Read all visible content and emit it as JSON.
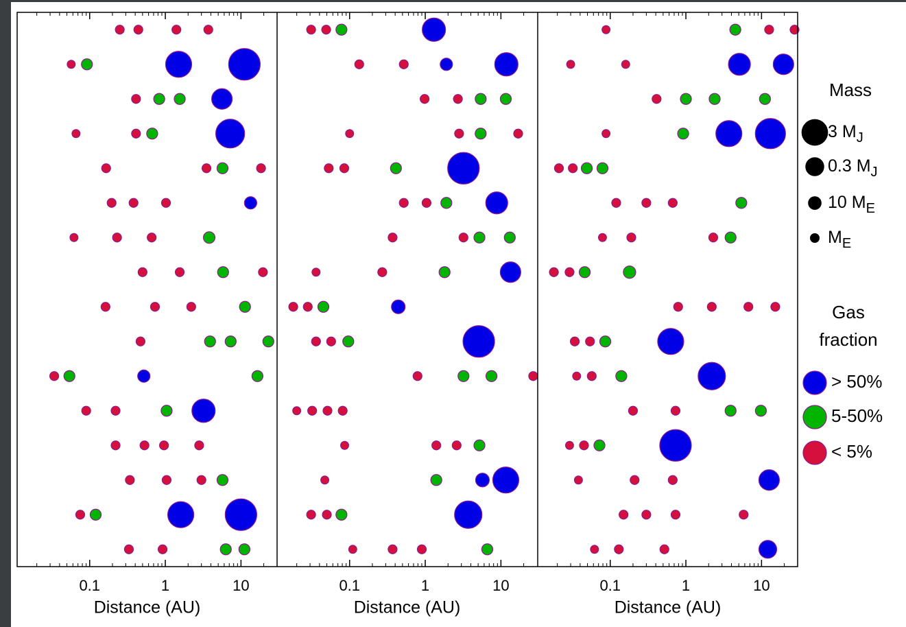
{
  "chart_data": {
    "type": "scatter",
    "x_log": true,
    "y_inverted": true,
    "xlabel": "Distance (AU)",
    "xlim": [
      0.011,
      30
    ],
    "xticks": [
      0.1,
      1,
      10
    ],
    "minor_xticks": [
      0.02,
      0.03,
      0.04,
      0.05,
      0.06,
      0.07,
      0.08,
      0.09,
      0.2,
      0.3,
      0.4,
      0.5,
      0.6,
      0.7,
      0.8,
      0.9,
      2,
      3,
      4,
      5,
      6,
      7,
      8,
      9,
      20
    ],
    "ylim": [
      0.5,
      16.5
    ],
    "edge_color": "#8b1a8b",
    "size_legend": {
      "title": "Mass",
      "items": [
        {
          "label": "3 M",
          "sub": "J",
          "value": 954
        },
        {
          "label": "0.3 M",
          "sub": "J",
          "value": 95.4
        },
        {
          "label": "10 M",
          "sub": "E",
          "value": 10
        },
        {
          "label": "M",
          "sub": "E",
          "value": 1
        }
      ]
    },
    "color_legend": {
      "title": [
        "Gas",
        "fraction"
      ],
      "items": [
        {
          "name": "> 50%",
          "color": "#0000e6"
        },
        {
          "name": "5-50%",
          "color": "#00b400"
        },
        {
          "name": "< 5%",
          "color": "#d6103c"
        }
      ]
    },
    "panels": [
      {
        "series": [
          {
            "x": [
              1.5,
              11.1,
              5.6,
              7.2,
              13.4,
              0.52,
              3.2,
              1.6,
              10
            ],
            "y": [
              2,
              2,
              3,
              4,
              6,
              11,
              12,
              15,
              15
            ],
            "size": [
              850,
              3100,
              170,
              1700,
              5.5,
              5.5,
              400,
              850,
              3100
            ]
          },
          {
            "x": [
              0.092,
              0.83,
              1.55,
              0.67,
              5.7,
              3.8,
              5.8,
              11.3,
              3.9,
              7.3,
              23,
              0.054,
              16.5,
              1.04,
              5.7,
              0.12,
              6.3,
              11.1
            ],
            "y": [
              2,
              3,
              3,
              4,
              5,
              7,
              8,
              9,
              10,
              10,
              10,
              11,
              11,
              12,
              14,
              15,
              16,
              16
            ],
            "size": [
              2.5,
              2.5,
              2.5,
              2.5,
              2.5,
              3.5,
              2.5,
              2.5,
              2.5,
              2.5,
              2.5,
              2.5,
              2.5,
              2.5,
              2.5,
              2.5,
              2.5,
              2.5
            ]
          },
          {
            "x": [
              0.25,
              0.44,
              1.4,
              3.7,
              0.057,
              0.41,
              0.066,
              0.41,
              0.165,
              3.5,
              18.4,
              0.195,
              0.38,
              1.02,
              0.062,
              0.23,
              0.66,
              0.5,
              1.55,
              19.5,
              0.162,
              0.73,
              2.2,
              0.47,
              0.034,
              0.09,
              0.22,
              0.22,
              0.53,
              0.96,
              2.8,
              0.34,
              1.04,
              3.0,
              0.075,
              0.33,
              0.92
            ],
            "y": [
              1,
              1,
              1,
              1,
              2,
              3,
              4,
              4,
              5,
              5,
              5,
              6,
              6,
              6,
              7,
              7,
              7,
              8,
              8,
              8,
              9,
              9,
              9,
              10,
              11,
              12,
              12,
              13,
              13,
              13,
              13,
              14,
              14,
              14,
              15,
              16,
              16
            ],
            "size": [
              0.6,
              0.6,
              0.6,
              0.6,
              0.3,
              0.6,
              0.3,
              0.6,
              0.6,
              0.6,
              0.6,
              0.6,
              0.6,
              0.6,
              0.3,
              0.6,
              0.6,
              0.6,
              0.6,
              0.6,
              0.6,
              0.6,
              0.6,
              0.6,
              0.6,
              0.6,
              0.6,
              0.6,
              0.6,
              0.6,
              0.6,
              0.6,
              0.6,
              0.6,
              0.6,
              0.6,
              0.6
            ]
          }
        ]
      },
      {
        "series": [
          {
            "x": [
              1.3,
              1.9,
              11.8,
              3.2,
              8.8,
              13.4,
              0.44,
              5.1,
              5.7,
              11.6,
              3.7
            ],
            "y": [
              1,
              2,
              2,
              5,
              6,
              8,
              9,
              10,
              14,
              14,
              15
            ],
            "size": [
              400,
              5.5,
              400,
              3100,
              270,
              170,
              11,
              3100,
              11,
              850,
              1200
            ]
          },
          {
            "x": [
              0.078,
              5.4,
              11.6,
              5.4,
              0.41,
              1.9,
              5.2,
              13.1,
              1.8,
              0.045,
              0.096,
              3.2,
              7.5,
              5.2,
              1.4,
              0.078,
              6.6
            ],
            "y": [
              1,
              3,
              3,
              4,
              5,
              6,
              7,
              7,
              8,
              9,
              10,
              11,
              11,
              13,
              14,
              15,
              16
            ],
            "size": [
              2.5,
              2.5,
              2.5,
              2.5,
              2.5,
              2.5,
              2.5,
              2.5,
              2.5,
              2.5,
              2.5,
              2.5,
              2.5,
              2.5,
              2.5,
              2.5,
              2.5
            ]
          },
          {
            "x": [
              0.031,
              0.049,
              0.134,
              0.52,
              0.98,
              2.7,
              0.1,
              2.8,
              16.9,
              0.053,
              0.085,
              0.52,
              1.04,
              0.37,
              3.2,
              0.036,
              0.27,
              0.018,
              0.028,
              0.036,
              0.057,
              0.79,
              26.7,
              0.02,
              0.032,
              0.051,
              0.081,
              0.086,
              1.4,
              2.6,
              0.047,
              0.031,
              0.05,
              0.11,
              0.37,
              0.9
            ],
            "y": [
              1,
              1,
              2,
              2,
              3,
              3,
              4,
              4,
              4,
              5,
              5,
              6,
              6,
              7,
              7,
              8,
              8,
              9,
              9,
              10,
              10,
              11,
              11,
              12,
              12,
              12,
              12,
              13,
              13,
              13,
              14,
              15,
              15,
              16,
              16,
              16
            ],
            "size": [
              0.6,
              0.6,
              0.6,
              0.6,
              0.6,
              0.6,
              0.3,
              0.6,
              0.6,
              0.6,
              0.6,
              0.6,
              0.6,
              0.6,
              0.6,
              0.3,
              0.6,
              0.6,
              0.6,
              0.6,
              0.6,
              0.6,
              0.6,
              0.3,
              0.6,
              0.6,
              0.6,
              0.3,
              0.6,
              0.6,
              0.3,
              0.6,
              0.6,
              0.3,
              0.6,
              0.6
            ]
          }
        ]
      },
      {
        "series": [
          {
            "x": [
              5.1,
              19.5,
              3.7,
              13.1,
              0.63,
              2.2,
              0.73,
              12.6,
              12.1
            ],
            "y": [
              2,
              2,
              4,
              4,
              10,
              11,
              13,
              14,
              16
            ],
            "size": [
              270,
              170,
              850,
              2300,
              850,
              1200,
              3100,
              170,
              65
            ]
          },
          {
            "x": [
              4.5,
              1.0,
              2.4,
              11.1,
              0.92,
              0.049,
              0.079,
              5.4,
              3.9,
              0.046,
              0.18,
              0.086,
              0.14,
              3.9,
              9.8,
              0.072
            ],
            "y": [
              1,
              3,
              3,
              3,
              4,
              5,
              5,
              6,
              7,
              8,
              8,
              10,
              11,
              12,
              12,
              13
            ],
            "size": [
              2.5,
              2.5,
              2.5,
              2.5,
              2.5,
              2.5,
              2.5,
              2.5,
              2.5,
              2.5,
              5.5,
              2.5,
              2.5,
              2.5,
              2.5,
              2.5
            ]
          },
          {
            "x": [
              0.088,
              12.6,
              27.3,
              0.03,
              0.16,
              0.41,
              0.088,
              0.021,
              0.032,
              0.12,
              0.3,
              0.67,
              0.079,
              0.19,
              2.3,
              0.018,
              0.029,
              0.79,
              2.2,
              6.7,
              15.2,
              0.034,
              0.054,
              0.036,
              0.057,
              0.2,
              0.73,
              0.029,
              0.045,
              0.038,
              0.21,
              0.67,
              0.15,
              0.3,
              0.73,
              5.8,
              0.062,
              0.13,
              0.52
            ],
            "y": [
              1,
              1,
              1,
              2,
              2,
              3,
              4,
              5,
              5,
              6,
              6,
              6,
              7,
              7,
              7,
              8,
              8,
              9,
              9,
              9,
              9,
              10,
              10,
              11,
              11,
              12,
              12,
              13,
              13,
              14,
              14,
              14,
              15,
              15,
              15,
              15,
              16,
              16,
              16
            ],
            "size": [
              0.3,
              0.6,
              0.6,
              0.3,
              0.3,
              0.6,
              0.3,
              0.6,
              0.6,
              0.6,
              0.6,
              0.6,
              0.3,
              0.6,
              0.6,
              0.6,
              0.6,
              0.6,
              0.6,
              0.6,
              0.6,
              0.6,
              0.6,
              0.3,
              0.6,
              0.6,
              0.6,
              0.3,
              0.6,
              0.3,
              0.6,
              0.6,
              0.6,
              0.6,
              0.6,
              0.6,
              0.3,
              0.6,
              0.6
            ]
          }
        ]
      }
    ]
  }
}
